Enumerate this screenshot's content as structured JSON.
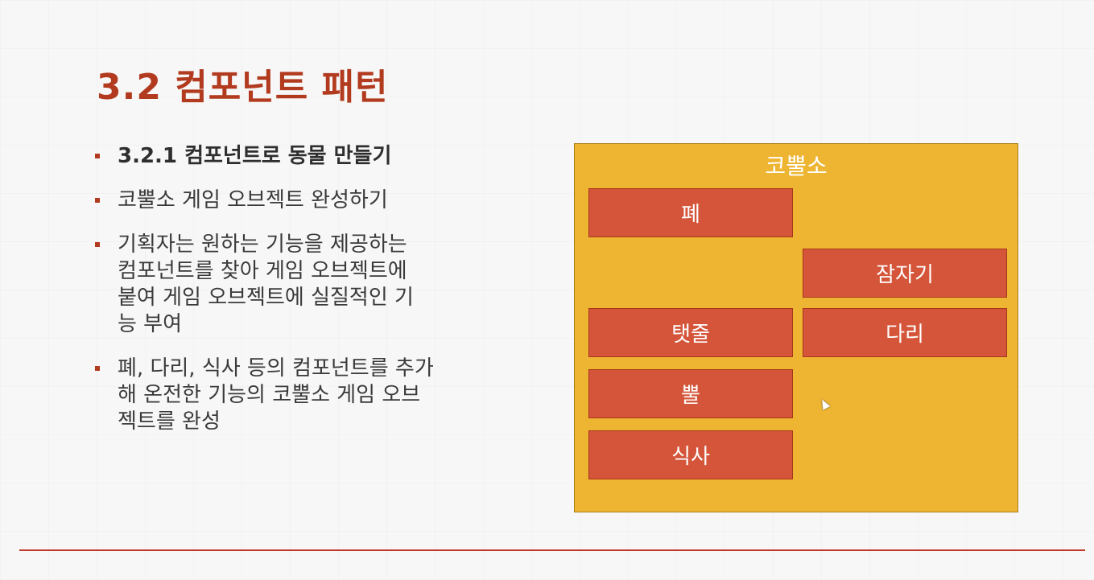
{
  "slide": {
    "title": "3.2 컴포넌트 패턴",
    "bullets": [
      "3.2.1 컴포넌트로 동물 만들기",
      "코뿔소 게임 오브젝트 완성하기",
      "기획자는 원하는 기능을 제공하는\n컴포넌트를 찾아 게임 오브젝트에\n붙여 게임 오브젝트에 실질적인 기\n능 부여",
      "폐, 다리, 식사 등의 컴포넌트를 추가\n해 온전한 기능의 코뿔소 게임 오브\n젝트를 완성"
    ]
  },
  "diagram": {
    "container_label": "코뿔소",
    "components": {
      "lung": "폐",
      "sleep": "잠자기",
      "tail": "탯줄",
      "legs": "다리",
      "horn": "뿔",
      "eat": "식사"
    }
  },
  "colors": {
    "title": "#b23a1e",
    "container": "#eeb532",
    "component": "#d4553a",
    "footer_line": "#c0392b"
  }
}
